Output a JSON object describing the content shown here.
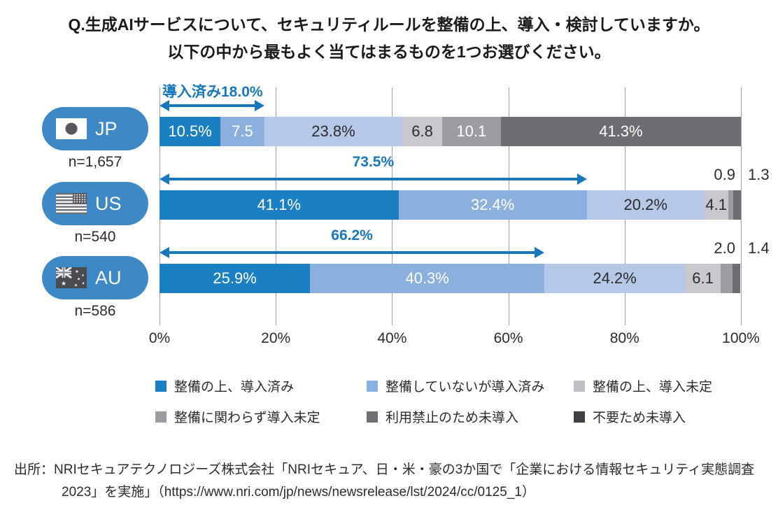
{
  "title": {
    "line1": "Q.生成AIサービスについて、セキュリティルールを整備の上、導入・検討していますか。",
    "line2": "以下の中から最もよく当てはまるものを1つお選びください。"
  },
  "chart_data": {
    "type": "bar",
    "subtype": "horizontal-stacked-100pct",
    "unit": "%",
    "x_axis": {
      "min": 0,
      "max": 100,
      "ticks": [
        "0%",
        "20%",
        "40%",
        "60%",
        "80%",
        "100%"
      ],
      "grid": true
    },
    "categories": [
      "整備の上、導入済み",
      "整備していないが導入済み",
      "整備の上、導入未定",
      "整備に関わらず導入未定",
      "利用禁止のため未導入",
      "不要ため未導入"
    ],
    "segment_colors": [
      "#1b7fc4",
      "#8cb0de",
      "#b5c8e8",
      "#c7c9cd",
      "#9b9da1",
      "#6b6d70"
    ],
    "segment_text_colors": [
      "#ffffff",
      "#ffffff",
      "#2b2b2b",
      "#2b2b2b",
      "#ffffff",
      "#ffffff"
    ],
    "rows": [
      {
        "code": "JP",
        "flag": "jp-flag-icon",
        "n_label": "n=1,657",
        "values": [
          10.5,
          7.5,
          23.8,
          6.8,
          10.1,
          41.3
        ],
        "labels": [
          "10.5%",
          "7.5",
          "23.8%",
          "6.8",
          "10.1",
          "41.3%"
        ],
        "outside_labels": [],
        "annotation": {
          "text": "導入済み18.0%",
          "span": 18.0,
          "align": "left"
        }
      },
      {
        "code": "US",
        "flag": "us-flag-icon",
        "n_label": "n=540",
        "values": [
          41.1,
          32.4,
          20.2,
          4.1,
          0.9,
          1.3
        ],
        "labels": [
          "41.1%",
          "32.4%",
          "20.2%",
          "4.1",
          "0.9",
          "1.3"
        ],
        "outside_labels": [
          {
            "text": "0.9",
            "side": "left"
          },
          {
            "text": "1.3",
            "side": "right"
          }
        ],
        "annotation": {
          "text": "73.5%",
          "span": 73.5,
          "align": "center"
        }
      },
      {
        "code": "AU",
        "flag": "au-flag-icon",
        "n_label": "n=586",
        "values": [
          25.9,
          40.3,
          24.2,
          6.1,
          2.0,
          1.4
        ],
        "labels": [
          "25.9%",
          "40.3%",
          "24.2%",
          "6.1",
          "2.0",
          "1.4"
        ],
        "outside_labels": [
          {
            "text": "2.0",
            "side": "left"
          },
          {
            "text": "1.4",
            "side": "right"
          }
        ],
        "annotation": {
          "text": "66.2%",
          "span": 66.2,
          "align": "center"
        }
      }
    ],
    "legend": [
      {
        "label": "整備の上、導入済み",
        "color": "#1b7fc4"
      },
      {
        "label": "整備していないが導入済み",
        "color": "#8cb0de"
      },
      {
        "label": "整備の上、導入未定",
        "color": "#bdbfc4"
      },
      {
        "label": "整備に関わらず導入未定",
        "color": "#9b9da1"
      },
      {
        "label": "利用禁止のため未導入",
        "color": "#6e7073"
      },
      {
        "label": "不要ため未導入",
        "color": "#3f4144"
      }
    ],
    "legend_position": "bottom"
  },
  "colors": {
    "pill_blue": "#3e88c6",
    "annotation_blue": "#1778be",
    "gridline": "#9c9ea2",
    "flag_dark": "#55575a"
  },
  "source": {
    "line1": "出所：NRIセキュアテクノロジーズ株式会社「NRIセキュア、日・米・豪の3か国で「企業における情報セキュリティ実態調査",
    "line2": "2023」を実施」（https://www.nri.com/jp/news/newsrelease/lst/2024/cc/0125_1）"
  }
}
